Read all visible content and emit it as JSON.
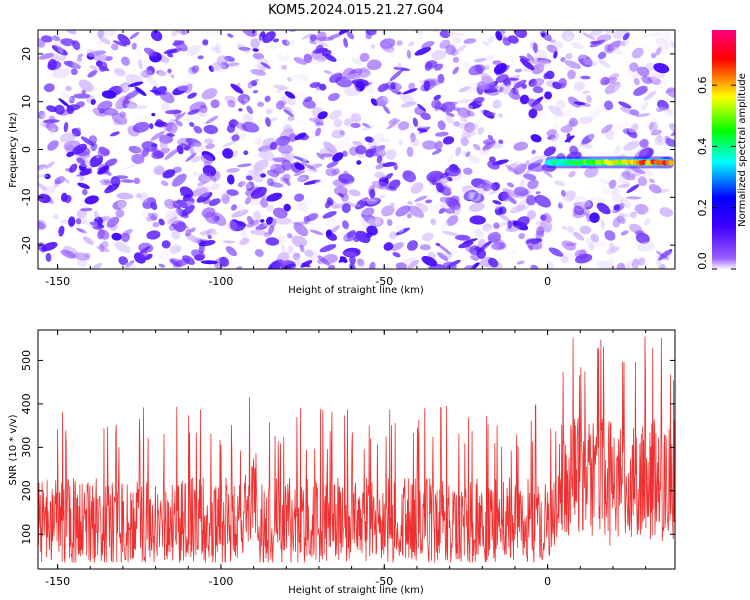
{
  "chart_data": [
    {
      "type": "heatmap",
      "title": "KOM5.2024.015.21.27.G04",
      "xlabel": "Height of straight line (km)",
      "ylabel": "Frequency (Hz)",
      "xlim": [
        -156,
        39
      ],
      "ylim": [
        -25,
        25
      ],
      "xticks": [
        -150,
        -100,
        -50,
        0
      ],
      "yticks": [
        -20,
        -10,
        0,
        10,
        20
      ],
      "colorbar": {
        "label": "Normalized spectral amplitude",
        "range": [
          0,
          0.78
        ],
        "ticks": [
          0.0,
          0.2,
          0.4,
          0.6
        ],
        "tick_labels": [
          "0.0",
          "0.2",
          "0.4",
          "0.6"
        ],
        "colormap": [
          "#ffffff",
          "#7a00ff",
          "#0000ff",
          "#00ffff",
          "#00ff00",
          "#ffff00",
          "#ff0000",
          "#ff0080"
        ]
      },
      "features": [
        {
          "kind": "noise",
          "x_range": [
            -156,
            39
          ],
          "y_range": [
            -25,
            25
          ],
          "amplitude_range": [
            0.0,
            0.15
          ]
        },
        {
          "kind": "signal",
          "x_range": [
            0,
            38
          ],
          "frequency": -2.7,
          "amplitude_range": [
            0.25,
            0.78
          ]
        }
      ]
    },
    {
      "type": "line",
      "xlabel": "Height of straight line (km)",
      "ylabel": "SNR (10 * v/v)",
      "xlim": [
        -156,
        39
      ],
      "ylim": [
        20,
        570
      ],
      "xticks": [
        -150,
        -100,
        -50,
        0
      ],
      "yticks": [
        100,
        200,
        300,
        400,
        500
      ],
      "color": "#f03030",
      "series_summary": [
        {
          "x_range": [
            -156,
            -93
          ],
          "median": 130,
          "min": 35,
          "max": 400
        },
        {
          "x_range": [
            -93,
            -89
          ],
          "median": 200,
          "min": 50,
          "max": 445
        },
        {
          "x_range": [
            -89,
            3
          ],
          "median": 130,
          "min": 35,
          "max": 400
        },
        {
          "x_range": [
            3,
            39
          ],
          "median": 230,
          "min": 70,
          "max": 570
        }
      ]
    }
  ]
}
